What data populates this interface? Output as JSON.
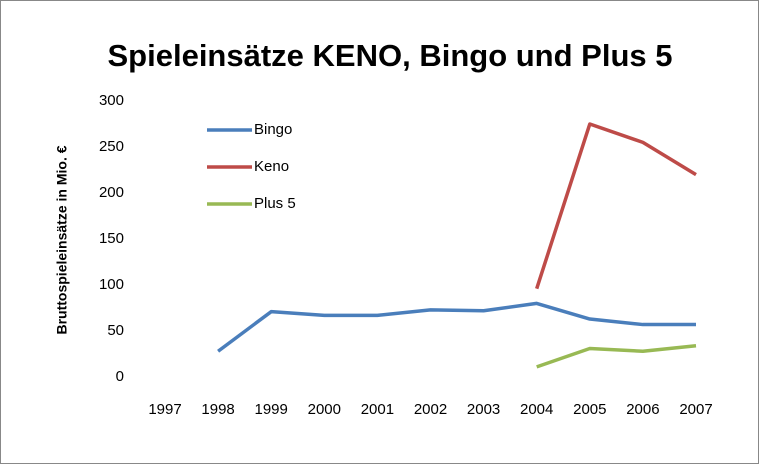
{
  "chart_data": {
    "type": "line",
    "title": "Spieleinsätze KENO, Bingo und Plus 5",
    "y_label": "Bruttospieleinsätze in Mio. €",
    "categories": [
      "1997",
      "1998",
      "1999",
      "2000",
      "2001",
      "2002",
      "2003",
      "2004",
      "2005",
      "2006",
      "2007"
    ],
    "series": [
      {
        "name": "Bingo",
        "color": "#4a7ebb",
        "values": [
          null,
          28,
          71,
          67,
          67,
          73,
          72,
          80,
          63,
          57,
          57
        ]
      },
      {
        "name": "Keno",
        "color": "#be4b48",
        "values": [
          null,
          null,
          null,
          null,
          null,
          null,
          null,
          96,
          275,
          255,
          220
        ]
      },
      {
        "name": "Plus 5",
        "color": "#98b954",
        "values": [
          null,
          null,
          null,
          null,
          null,
          null,
          null,
          11,
          31,
          28,
          34
        ]
      }
    ],
    "ylim": [
      0,
      300
    ],
    "yticks": [
      0,
      50,
      100,
      150,
      200,
      250,
      300
    ],
    "grid": false,
    "legend": "upper left"
  }
}
